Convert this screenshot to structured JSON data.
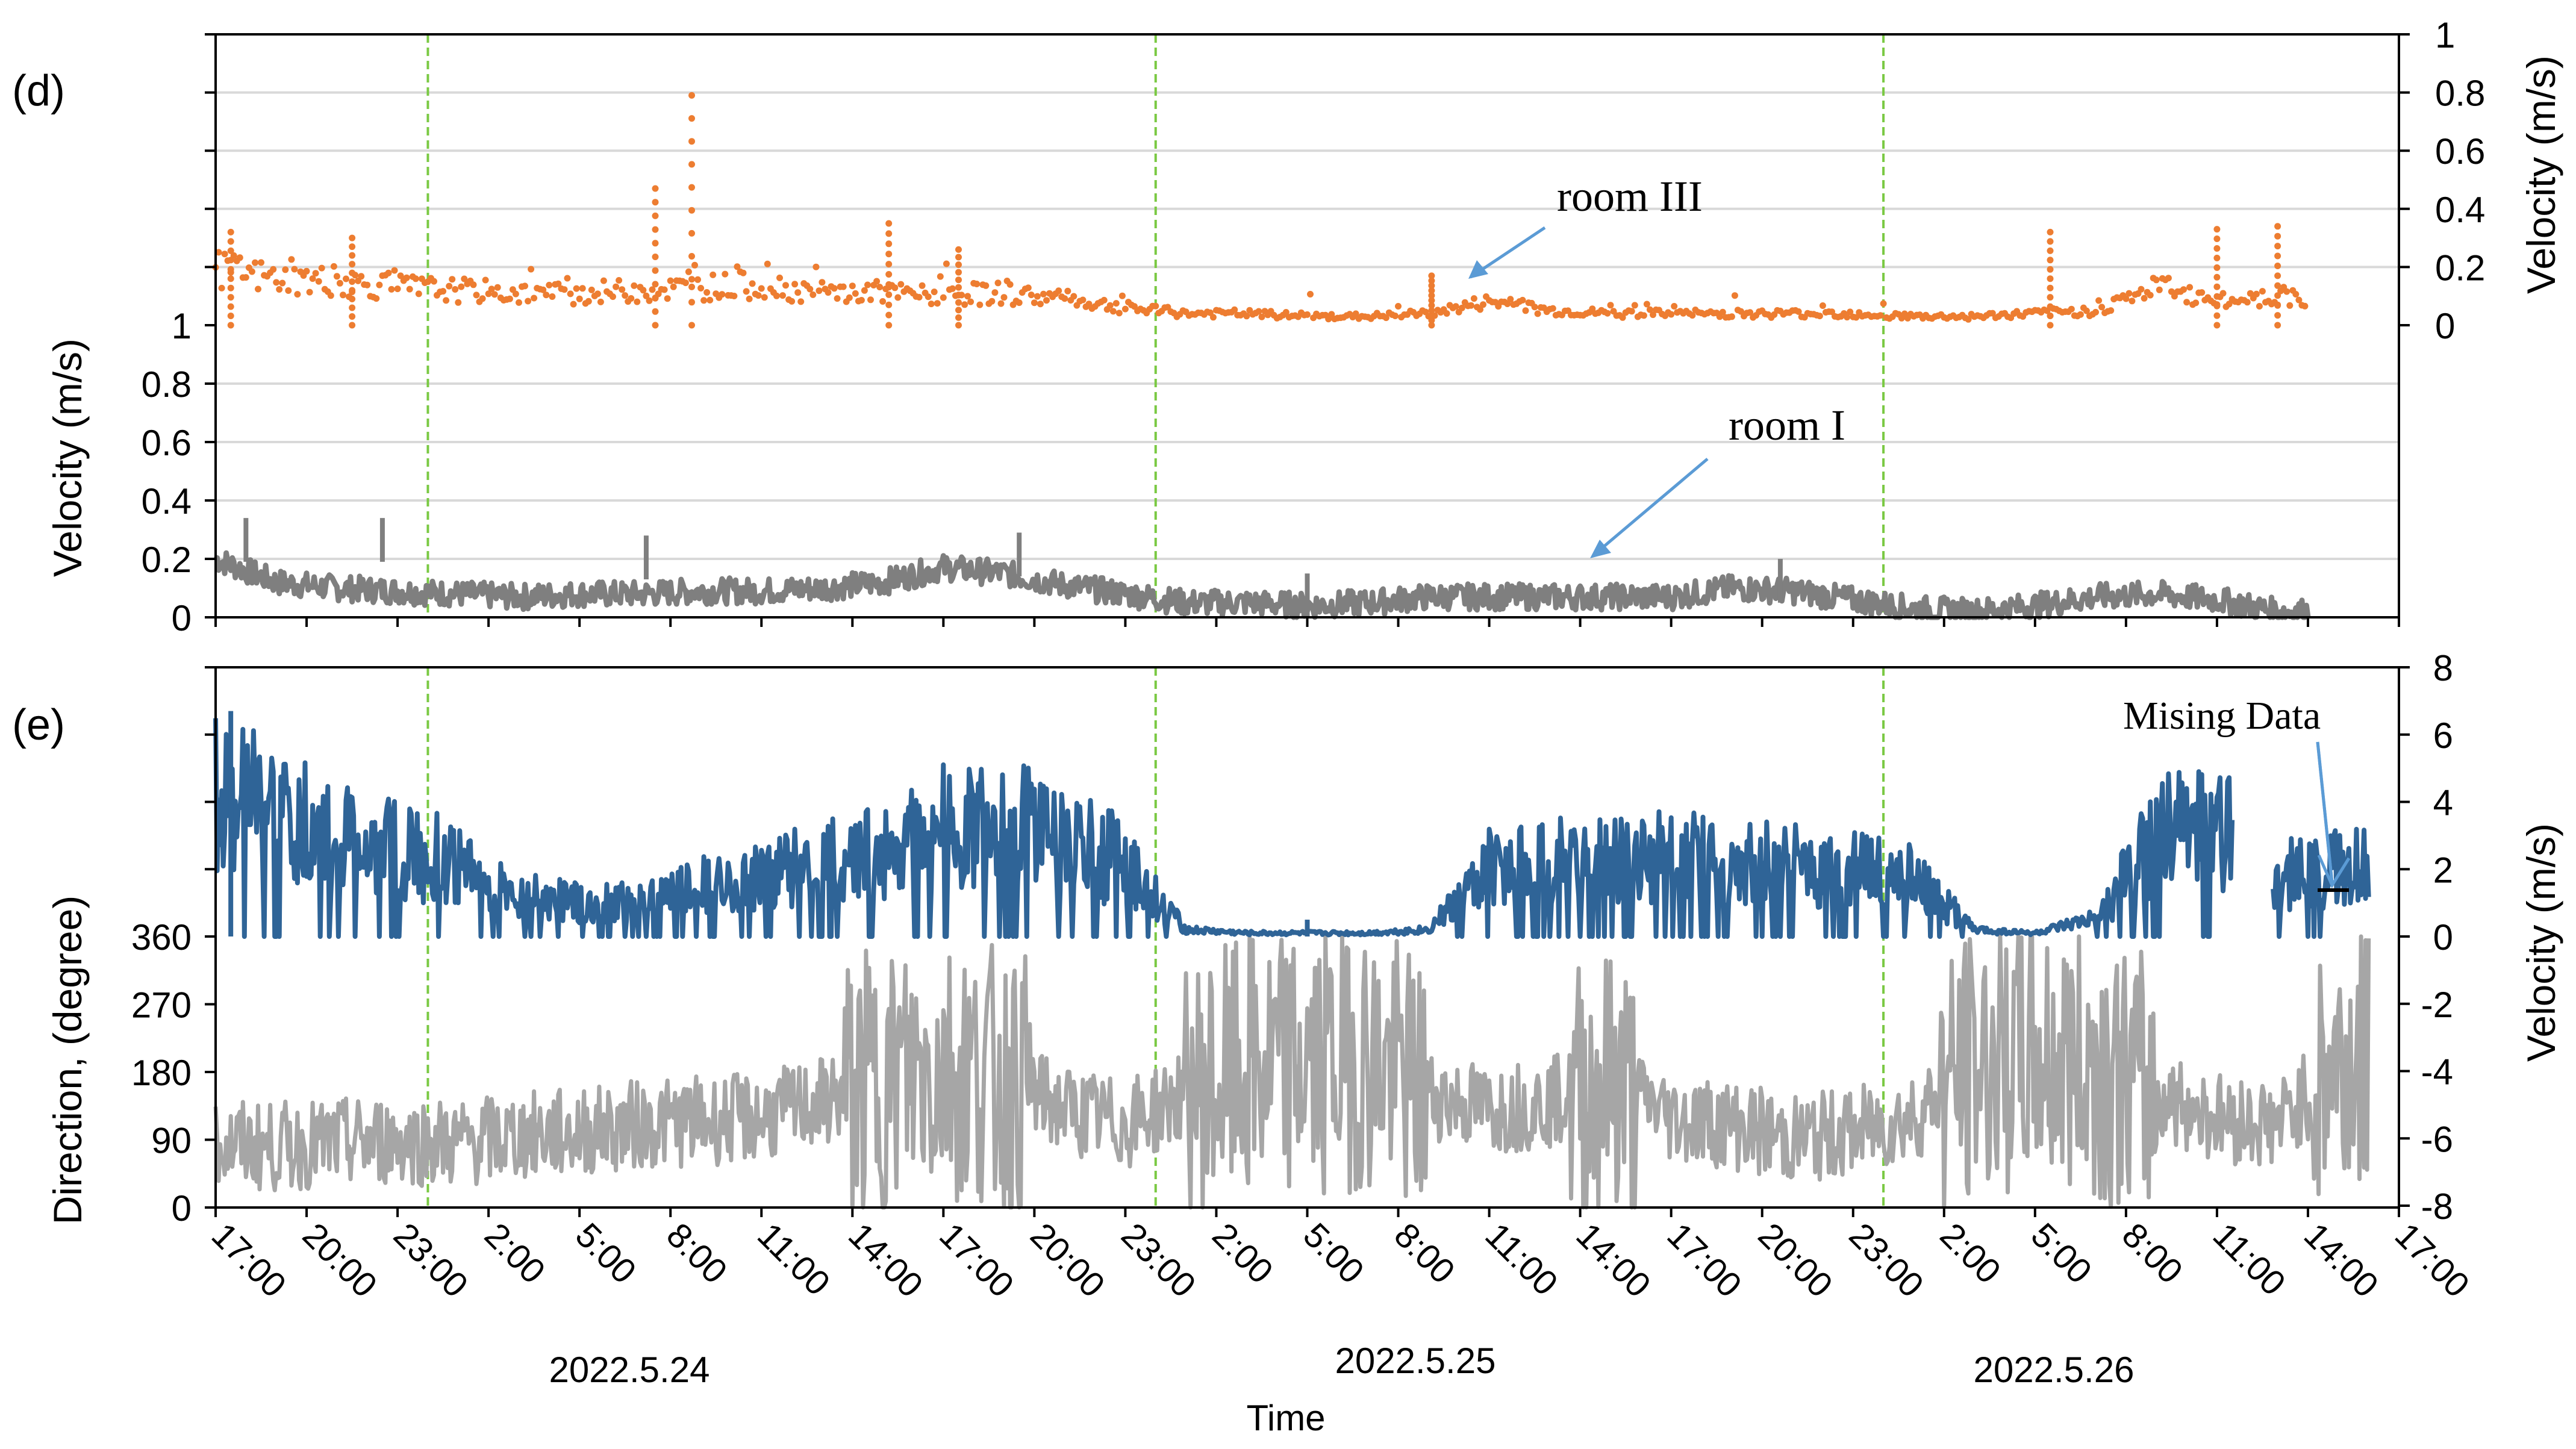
{
  "chart_data": [
    {
      "panel_label": "(d)",
      "type": "line",
      "x_start": "17:00",
      "time_tick_labels": [
        "17:00",
        "20:00",
        "23:00",
        "2:00",
        "5:00",
        "8:00",
        "11:00",
        "14:00",
        "17:00",
        "20:00",
        "23:00",
        "2:00",
        "5:00",
        "8:00",
        "11:00",
        "14:00",
        "17:00",
        "20:00",
        "23:00",
        "2:00",
        "5:00",
        "8:00",
        "11:00",
        "14:00",
        "17:00"
      ],
      "grid": true,
      "left_axis": {
        "label": "Velocity  (m/s)",
        "ticks": [
          "0",
          "0.2",
          "0.4",
          "0.6",
          "0.8",
          "1"
        ],
        "range": [
          0,
          1
        ]
      },
      "right_axis": {
        "label": "Velocity  (m/s)",
        "ticks": [
          "0",
          "0.2",
          "0.4",
          "0.6",
          "0.8",
          "1"
        ],
        "range": [
          0,
          1
        ]
      },
      "annotations": [
        {
          "text": "room III",
          "color": "#5b9bd5"
        },
        {
          "text": "room I",
          "color": "#5b9bd5"
        }
      ],
      "series": [
        {
          "name": "room III",
          "axis": "right",
          "style": "dots",
          "color": "#ed7d31",
          "x_hours": [
            0,
            2,
            4,
            6,
            8,
            10,
            12,
            14,
            16,
            18,
            20,
            22,
            24,
            26,
            28,
            30,
            32,
            34,
            36,
            38,
            40,
            42,
            44,
            46,
            48,
            50,
            52,
            54,
            56,
            58,
            60,
            62,
            64,
            66,
            68
          ],
          "values": [
            0.19,
            0.16,
            0.15,
            0.13,
            0.12,
            0.11,
            0.11,
            0.12,
            0.13,
            0.14,
            0.11,
            0.11,
            0.1,
            0.11,
            0.09,
            0.06,
            0.04,
            0.04,
            0.03,
            0.03,
            0.04,
            0.08,
            0.05,
            0.04,
            0.04,
            0.04,
            0.04,
            0.04,
            0.03,
            0.03,
            0.04,
            0.05,
            0.13,
            0.08,
            0.1
          ],
          "peaks": [
            [
              0.5,
              0.32
            ],
            [
              4.5,
              0.3
            ],
            [
              14.5,
              0.47
            ],
            [
              15.7,
              0.79
            ],
            [
              22.2,
              0.35
            ],
            [
              24.5,
              0.26
            ],
            [
              40.1,
              0.17
            ],
            [
              60.5,
              0.32
            ],
            [
              66,
              0.33
            ],
            [
              68,
              0.34
            ]
          ]
        },
        {
          "name": "room I",
          "axis": "left",
          "style": "thick-line",
          "color": "#7f7f7f",
          "x_hours": [
            0,
            2,
            4,
            6,
            8,
            10,
            12,
            14,
            16,
            18,
            20,
            22,
            24,
            26,
            28,
            30,
            32,
            34,
            36,
            38,
            40,
            42,
            44,
            46,
            48,
            50,
            52,
            54,
            56,
            58,
            60,
            62,
            64,
            66,
            68
          ],
          "values": [
            0.2,
            0.12,
            0.1,
            0.09,
            0.08,
            0.07,
            0.08,
            0.08,
            0.09,
            0.09,
            0.1,
            0.12,
            0.17,
            0.15,
            0.11,
            0.08,
            0.05,
            0.05,
            0.04,
            0.05,
            0.07,
            0.07,
            0.07,
            0.07,
            0.07,
            0.1,
            0.09,
            0.06,
            0.03,
            0.02,
            0.04,
            0.07,
            0.08,
            0.06,
            0.02
          ]
        }
      ]
    },
    {
      "panel_label": "(e)",
      "type": "line",
      "x_start": "17:00",
      "time_tick_labels": [
        "17:00",
        "20:00",
        "23:00",
        "2:00",
        "5:00",
        "8:00",
        "11:00",
        "14:00",
        "17:00",
        "20:00",
        "23:00",
        "2:00",
        "5:00",
        "8:00",
        "11:00",
        "14:00",
        "17:00",
        "20:00",
        "23:00",
        "2:00",
        "5:00",
        "8:00",
        "11:00",
        "14:00",
        "17:00"
      ],
      "date_labels": [
        "2022.5.24",
        "2022.5.25",
        "2022.5.26"
      ],
      "xlabel": "Time",
      "grid": false,
      "left_axis": {
        "label": "Direction, (degree)",
        "ticks": [
          "0",
          "90",
          "180",
          "270",
          "360"
        ],
        "range": [
          0,
          360
        ]
      },
      "right_axis": {
        "label": "Velocity  (m/s)",
        "ticks": [
          "-8",
          "-6",
          "-4",
          "-2",
          "0",
          "2",
          "4",
          "6",
          "8"
        ],
        "range": [
          -8,
          8
        ]
      },
      "annotations": [
        {
          "text": "Mising Data",
          "color": "#5b9bd5"
        }
      ],
      "series": [
        {
          "name": "Velocity",
          "axis": "right",
          "style": "thick-line",
          "color": "#2f6497",
          "x_hours": [
            0,
            2,
            4,
            6,
            8,
            10,
            12,
            14,
            16,
            18,
            20,
            22,
            24,
            26,
            28,
            30,
            32,
            34,
            36,
            38,
            40,
            42,
            44,
            46,
            48,
            50,
            52,
            54,
            56,
            58,
            60,
            62,
            64,
            66,
            68,
            70
          ],
          "values": [
            4.5,
            3.5,
            3.0,
            2.5,
            2.2,
            1.2,
            1.0,
            1.0,
            1.5,
            1.8,
            2.2,
            2.6,
            3.2,
            3.4,
            2.8,
            2.2,
            0.2,
            0.1,
            0.1,
            0.1,
            0.2,
            2.0,
            2.2,
            2.3,
            2.4,
            2.3,
            2.1,
            2.0,
            1.8,
            0.2,
            0.1,
            0.5,
            3.0,
            3.5,
            1.8,
            2.0
          ],
          "missing_data_x_hours": [
            66.5,
            67.8
          ]
        },
        {
          "name": "Direction",
          "axis": "left",
          "style": "thick-line",
          "color": "#a6a6a6",
          "x_hours": [
            0,
            2,
            4,
            6,
            8,
            10,
            12,
            14,
            16,
            18,
            20,
            22,
            24,
            26,
            28,
            30,
            32,
            34,
            36,
            38,
            40,
            42,
            44,
            46,
            48,
            50,
            52,
            54,
            56,
            58,
            60,
            62,
            64,
            66,
            68,
            70
          ],
          "values": [
            85,
            80,
            85,
            90,
            85,
            95,
            100,
            110,
            115,
            120,
            140,
            170,
            190,
            170,
            130,
            110,
            150,
            180,
            190,
            200,
            150,
            130,
            140,
            170,
            120,
            110,
            90,
            100,
            120,
            190,
            200,
            190,
            150,
            120,
            110,
            190
          ]
        }
      ]
    }
  ]
}
